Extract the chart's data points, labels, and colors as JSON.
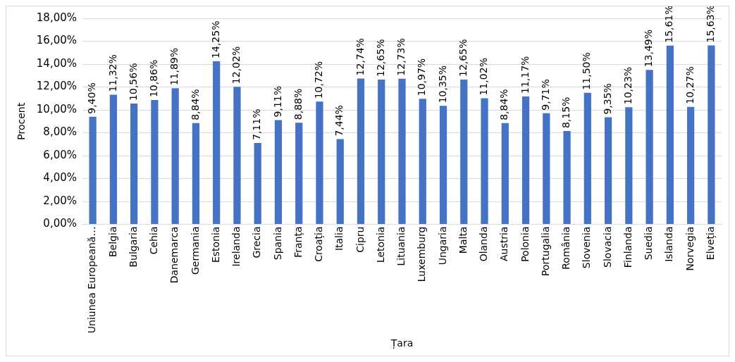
{
  "chart_data": {
    "type": "bar",
    "xlabel": "Țara",
    "ylabel": "Procent",
    "categories": [
      "Uniunea Europeană…",
      "Belgia",
      "Bulgaria",
      "Cehia",
      "Danemarca",
      "Germania",
      "Estonia",
      "Irelanda",
      "Grecia",
      "Spania",
      "Franța",
      "Croația",
      "Italia",
      "Cipru",
      "Letonia",
      "Lituania",
      "Luxemburg",
      "Ungaria",
      "Malta",
      "Olanda",
      "Austria",
      "Polonia",
      "Portugalia",
      "România",
      "Slovenia",
      "Slovacia",
      "Finlanda",
      "Suedia",
      "Islanda",
      "Norvegia",
      "Elveția"
    ],
    "values": [
      9.4,
      11.32,
      10.56,
      10.86,
      11.89,
      8.84,
      14.25,
      12.02,
      7.11,
      9.11,
      8.88,
      10.72,
      7.44,
      12.74,
      12.65,
      12.73,
      10.97,
      10.35,
      12.65,
      11.02,
      8.84,
      11.17,
      9.71,
      8.15,
      11.5,
      9.35,
      10.23,
      13.49,
      15.61,
      10.27,
      15.63
    ],
    "value_labels": [
      "9,40%",
      "11,32%",
      "10,56%",
      "10,86%",
      "11,89%",
      "8,84%",
      "14,25%",
      "12,02%",
      "7,11%",
      "9,11%",
      "8,88%",
      "10,72%",
      "7,44%",
      "12,74%",
      "12,65%",
      "12,73%",
      "10,97%",
      "10,35%",
      "12,65%",
      "11,02%",
      "8,84%",
      "11,17%",
      "9,71%",
      "8,15%",
      "11,50%",
      "9,35%",
      "10,23%",
      "13,49%",
      "15,61%",
      "10,27%",
      "15,63%"
    ],
    "color": "#4472c4",
    "ylim": [
      0,
      18
    ],
    "yticks": [
      {
        "value": 0,
        "label": "0,00%"
      },
      {
        "value": 2,
        "label": "2,00%"
      },
      {
        "value": 4,
        "label": "4,00%"
      },
      {
        "value": 6,
        "label": "6,00%"
      },
      {
        "value": 8,
        "label": "8,00%"
      },
      {
        "value": 10,
        "label": "10,00%"
      },
      {
        "value": 12,
        "label": "12,00%"
      },
      {
        "value": 14,
        "label": "14,00%"
      },
      {
        "value": 16,
        "label": "16,00%"
      },
      {
        "value": 18,
        "label": "18,00%"
      }
    ],
    "grid": "y",
    "legend": false
  }
}
